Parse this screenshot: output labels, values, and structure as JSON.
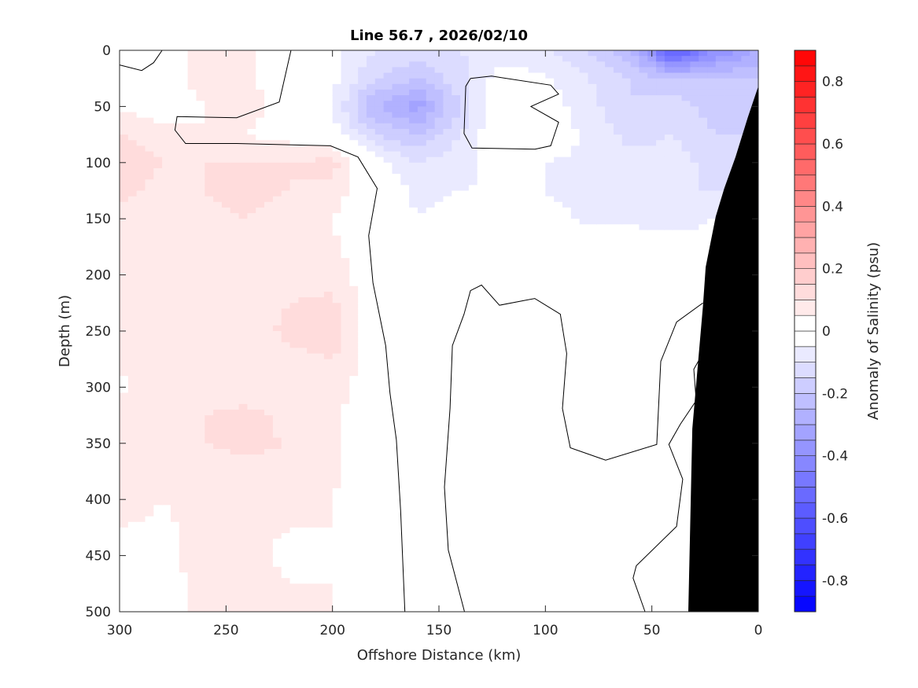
{
  "chart_data": {
    "type": "heatmap",
    "subtype": "filled-contour",
    "title": "Line 56.7 , 2026/02/10",
    "xlabel": "Offshore Distance (km)",
    "ylabel": "Depth (m)",
    "colorbar_label": "Anomaly of Salinity (psu)",
    "xlim": [
      300,
      0
    ],
    "ylim": [
      0,
      500
    ],
    "x_reversed": true,
    "y_reversed": true,
    "xticks": [
      "300",
      "250",
      "200",
      "150",
      "100",
      "50",
      "0"
    ],
    "xtick_values": [
      300,
      250,
      200,
      150,
      100,
      50,
      0
    ],
    "yticks": [
      "0",
      "50",
      "100",
      "150",
      "200",
      "250",
      "300",
      "350",
      "400",
      "450",
      "500"
    ],
    "ytick_values": [
      0,
      50,
      100,
      150,
      200,
      250,
      300,
      350,
      400,
      450,
      500
    ],
    "clim": [
      -0.9,
      0.9
    ],
    "contour_step": 0.05,
    "colorbar_ticks": [
      "-0.8",
      "-0.6",
      "-0.4",
      "-0.2",
      "0",
      "0.2",
      "0.4",
      "0.6",
      "0.8"
    ],
    "colorbar_tick_values": [
      -0.8,
      -0.6,
      -0.4,
      -0.2,
      0,
      0.2,
      0.4,
      0.6,
      0.8
    ],
    "colors": {
      "positive": "#ff0000",
      "negative": "#0000ff",
      "zero": "#ffffff",
      "bathymetry": "#000000"
    },
    "grid_x_km": [
      300,
      280,
      260,
      240,
      220,
      200,
      180,
      160,
      140,
      120,
      100,
      80,
      60,
      40,
      20,
      0
    ],
    "grid_depth_m": [
      0,
      25,
      50,
      75,
      100,
      125,
      150,
      175,
      200,
      225,
      250,
      275,
      300,
      325,
      350,
      375,
      400,
      425,
      450,
      475,
      500
    ],
    "anomaly": [
      [
        0,
        0.02,
        0.07,
        0.06,
        -0.02,
        -0.04,
        -0.1,
        -0.12,
        -0.1,
        -0.08,
        -0.1,
        -0.15,
        -0.25,
        -0.6,
        -0.4,
        -0.3
      ],
      [
        0,
        0.02,
        0.07,
        0.06,
        0.02,
        -0.03,
        -0.15,
        -0.2,
        -0.12,
        -0.02,
        -0.04,
        -0.1,
        -0.15,
        -0.2,
        -0.2,
        -0.2
      ],
      [
        0.04,
        0.02,
        0.05,
        0.06,
        0.04,
        -0.05,
        -0.25,
        -0.33,
        -0.15,
        0.02,
        -0.02,
        -0.08,
        -0.15,
        -0.12,
        -0.18,
        -0.2
      ],
      [
        0.1,
        0.07,
        0.05,
        0.05,
        0.03,
        -0.02,
        -0.15,
        -0.2,
        -0.1,
        0.01,
        -0.01,
        -0.06,
        -0.12,
        -0.1,
        -0.15,
        -0.15
      ],
      [
        0.14,
        0.1,
        0.1,
        0.1,
        0.1,
        0.12,
        -0.02,
        -0.1,
        -0.07,
        -0.03,
        -0.05,
        -0.06,
        -0.08,
        -0.08,
        -0.12,
        -0.12
      ],
      [
        0.12,
        0.08,
        0.1,
        0.12,
        0.1,
        0.08,
        -0.01,
        -0.06,
        -0.05,
        -0.04,
        -0.05,
        -0.07,
        -0.08,
        -0.1,
        -0.1,
        -0.1
      ],
      [
        0.08,
        0.06,
        0.08,
        0.1,
        0.06,
        0.05,
        -0.01,
        -0.05,
        -0.04,
        -0.02,
        -0.03,
        -0.06,
        -0.06,
        -0.07,
        -0.05,
        -0.05
      ],
      [
        0.05,
        0.06,
        0.06,
        0.05,
        0.05,
        0.06,
        0,
        -0.05,
        -0.03,
        -0.01,
        -0.01,
        -0.02,
        -0.02,
        -0.03,
        -0.03,
        -0.03
      ],
      [
        0.05,
        0.07,
        0.06,
        0.06,
        0.07,
        0.08,
        0.01,
        -0.05,
        -0.03,
        0,
        0,
        -0.01,
        -0.01,
        -0.01,
        -0.01,
        -0.01
      ],
      [
        0.06,
        0.07,
        0.08,
        0.06,
        0.1,
        0.11,
        0.01,
        -0.04,
        -0.02,
        0,
        0,
        -0.01,
        -0.02,
        -0.01,
        0,
        0
      ],
      [
        0.06,
        0.07,
        0.1,
        0.06,
        0.12,
        0.14,
        0.01,
        -0.03,
        -0.01,
        0,
        0,
        0,
        -0.02,
        0,
        0,
        0
      ],
      [
        0.06,
        0.07,
        0.08,
        0.05,
        0.08,
        0.1,
        0.01,
        -0.01,
        0,
        0,
        0,
        0,
        0,
        0,
        0,
        0
      ],
      [
        0.04,
        0.08,
        0.07,
        0.06,
        0.06,
        0.08,
        0.01,
        0,
        0,
        0.01,
        0,
        0,
        0,
        0,
        0,
        0
      ],
      [
        0.07,
        0.08,
        0.1,
        0.12,
        0.08,
        0.06,
        0.01,
        0,
        0,
        0.03,
        0.01,
        0,
        0,
        0,
        0,
        0
      ],
      [
        0.1,
        0.08,
        0.1,
        0.11,
        0.1,
        0.06,
        0.01,
        0,
        0,
        0.04,
        0.01,
        0,
        0,
        0,
        0,
        0
      ],
      [
        0.1,
        0.06,
        0.08,
        0.09,
        0.07,
        0.06,
        0.01,
        0,
        0,
        0.04,
        0.01,
        0,
        0,
        0,
        0,
        0
      ],
      [
        0.08,
        0.05,
        0.07,
        0.07,
        0.06,
        0.05,
        0.01,
        0,
        0,
        0.04,
        0.01,
        0,
        0,
        0,
        0,
        0
      ],
      [
        0.05,
        0.04,
        0.07,
        0.06,
        0.05,
        0.05,
        0.01,
        0,
        0,
        0.04,
        0.01,
        0,
        0,
        0,
        0,
        0
      ],
      [
        0.02,
        0.04,
        0.07,
        0.06,
        0.04,
        0.05,
        0.01,
        0,
        0,
        0.03,
        0,
        0,
        0,
        0,
        0,
        0
      ],
      [
        0,
        0.02,
        0.07,
        0.07,
        0.05,
        0.05,
        0.01,
        0,
        0,
        0.02,
        0,
        0,
        0,
        0,
        0,
        0
      ],
      [
        0,
        0.02,
        0.07,
        0.07,
        0.06,
        0.05,
        0.01,
        0,
        0,
        0.01,
        0,
        0,
        0,
        0,
        0,
        0
      ]
    ],
    "bathymetry": [
      [
        0,
        32
      ],
      [
        5,
        60
      ],
      [
        10.7,
        95
      ],
      [
        16,
        123
      ],
      [
        20,
        148
      ],
      [
        24.7,
        193
      ],
      [
        26,
        228
      ],
      [
        31,
        337
      ],
      [
        32.9,
        500
      ],
      [
        0,
        500
      ]
    ],
    "zero_contours": [
      [
        [
          219.5,
          0
        ],
        [
          225,
          46
        ],
        [
          245,
          60
        ],
        [
          273,
          59
        ],
        [
          274,
          71
        ],
        [
          269,
          83
        ],
        [
          245,
          83
        ],
        [
          201,
          85
        ],
        [
          188,
          95
        ],
        [
          179,
          123
        ],
        [
          183,
          165
        ],
        [
          181,
          207
        ],
        [
          175,
          263
        ],
        [
          173,
          305
        ],
        [
          170,
          347
        ],
        [
          168,
          410
        ],
        [
          166,
          500
        ]
      ],
      [
        [
          300,
          13
        ],
        [
          289.6,
          18
        ],
        [
          284,
          11
        ],
        [
          280,
          0
        ]
      ],
      [
        [
          135.2,
          25
        ],
        [
          125.3,
          23
        ],
        [
          97.5,
          31
        ],
        [
          93.8,
          39
        ],
        [
          106.8,
          50
        ],
        [
          93.8,
          64
        ],
        [
          97.5,
          85
        ],
        [
          104.9,
          88
        ],
        [
          134.5,
          87
        ],
        [
          138.2,
          74
        ],
        [
          137.4,
          32
        ],
        [
          135.2,
          25
        ]
      ],
      [
        [
          138,
          500
        ],
        [
          145.6,
          445
        ],
        [
          147.4,
          389
        ],
        [
          144.8,
          319
        ],
        [
          143.7,
          263
        ],
        [
          138.2,
          235
        ],
        [
          135.2,
          214
        ],
        [
          130,
          209
        ],
        [
          121.6,
          227
        ],
        [
          105,
          221
        ],
        [
          93,
          235
        ],
        [
          90,
          270
        ],
        [
          92,
          319
        ],
        [
          88.3,
          354
        ],
        [
          71.7,
          365
        ],
        [
          47.7,
          351
        ],
        [
          45.8,
          277
        ],
        [
          38.4,
          242
        ],
        [
          26,
          225
        ]
      ],
      [
        [
          53.2,
          500
        ],
        [
          58.8,
          470
        ],
        [
          57.3,
          459
        ],
        [
          38.4,
          424
        ],
        [
          35.5,
          382
        ],
        [
          42,
          351
        ],
        [
          36.6,
          333
        ],
        [
          29.2,
          312
        ],
        [
          30.3,
          284
        ],
        [
          27.3,
          274
        ]
      ]
    ]
  }
}
